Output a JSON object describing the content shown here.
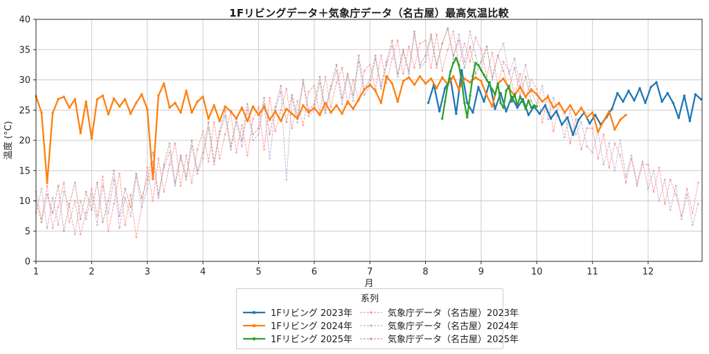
{
  "chart_data": {
    "type": "line",
    "title": "1Fリビングデータ＋気象庁データ（名古屋）最高気温比較",
    "xlabel": "月",
    "ylabel": "温度 (°C)",
    "xlim": [
      1,
      12.97
    ],
    "ylim": [
      0,
      40
    ],
    "xticks": [
      1,
      2,
      3,
      4,
      5,
      6,
      7,
      8,
      9,
      10,
      11,
      12
    ],
    "yticks": [
      0,
      5,
      10,
      15,
      20,
      25,
      30,
      35,
      40
    ],
    "grid": true,
    "grid_color": "#cccccc",
    "spine_color": "#262626",
    "legend_title": "系列",
    "legend_position": "bottom-center",
    "series": [
      {
        "name": "1Fリビング 2023年",
        "color": "#1f77b4",
        "style": "solid",
        "width": 2.3,
        "marker": true,
        "opacity": 1,
        "x_start": 8.05,
        "x_step": 0.1,
        "values": [
          26.2,
          29.2,
          24.8,
          28.6,
          30.2,
          24.4,
          31.6,
          26.2,
          24.6,
          28.8,
          26.4,
          29.6,
          25.2,
          27.8,
          24.8,
          27.2,
          25.4,
          26.8,
          24.2,
          25.6,
          24.4,
          25.8,
          23.6,
          24.8,
          22.6,
          23.8,
          20.9,
          23.4,
          24.6,
          22.8,
          24.2,
          22.6,
          23.8,
          25.2,
          27.8,
          26.4,
          28.2,
          26.6,
          28.6,
          26.2,
          28.8,
          29.6,
          26.4,
          27.8,
          26.2,
          23.7,
          27.4,
          23.2,
          27.6,
          26.8
        ]
      },
      {
        "name": "1Fリビング 2024年",
        "color": "#ff7f0e",
        "style": "solid",
        "width": 2.3,
        "marker": true,
        "opacity": 1,
        "x_start": 1.0,
        "x_step": 0.1,
        "values": [
          27.3,
          24.6,
          13.0,
          24.5,
          26.8,
          27.2,
          25.4,
          26.8,
          21.2,
          26.4,
          20.3,
          26.8,
          27.4,
          24.3,
          26.9,
          25.6,
          26.8,
          24.4,
          26.2,
          27.6,
          25.2,
          13.6,
          27.4,
          29.4,
          25.4,
          26.2,
          24.6,
          28.2,
          24.6,
          26.4,
          27.2,
          23.6,
          25.8,
          23.2,
          25.6,
          24.8,
          23.6,
          25.4,
          23.2,
          25.6,
          24.2,
          25.6,
          23.4,
          24.8,
          23.2,
          25.2,
          24.4,
          23.6,
          25.8,
          24.6,
          25.4,
          24.2,
          26.2,
          24.6,
          25.8,
          24.4,
          26.4,
          25.2,
          26.8,
          28.4,
          29.2,
          28.2,
          26.2,
          30.6,
          29.4,
          26.4,
          29.8,
          30.4,
          29.2,
          30.6,
          29.4,
          30.2,
          28.6,
          30.4,
          29.2,
          30.6,
          28.4,
          30.2,
          29.6,
          30.4,
          29.8,
          27.4,
          25.6,
          29.4,
          30.2,
          28.6,
          27.4,
          28.8,
          27.2,
          28.4,
          27.6,
          26.4,
          27.2,
          25.4,
          26.2,
          24.6,
          25.8,
          24.2,
          25.4,
          23.8,
          24.6,
          21.4,
          23.2,
          24.8,
          21.8,
          23.4,
          24.2
        ]
      },
      {
        "name": "1Fリビング 2025年",
        "color": "#2ca02c",
        "style": "solid",
        "width": 2.3,
        "marker": true,
        "opacity": 1,
        "x_start": 8.3,
        "x_step": 0.05,
        "values": [
          23.6,
          26.4,
          29.2,
          31.4,
          32.8,
          33.6,
          32.4,
          29.8,
          26.2,
          23.8,
          27.4,
          30.6,
          32.8,
          32.4,
          31.6,
          30.8,
          30.0,
          29.2,
          28.4,
          27.6,
          29.4,
          26.2,
          25.4,
          28.2,
          29.0,
          26.4,
          27.6,
          25.8,
          27.2,
          26.4,
          25.2,
          26.6,
          25.4,
          25.8,
          25.6
        ]
      },
      {
        "name": "気象庁データ（名古屋）2023年",
        "color": "#ff9896",
        "style": "dashed",
        "width": 1,
        "marker": true,
        "opacity": 0.9,
        "x_start": 1.0,
        "x_step": 0.1,
        "values": [
          11.5,
          7.0,
          12.5,
          5.5,
          9.0,
          13.0,
          6.5,
          10.0,
          4.5,
          8.0,
          12.0,
          7.5,
          14.0,
          5.0,
          9.5,
          14.5,
          6.0,
          11.0,
          4.0,
          9.0,
          15.5,
          10.0,
          17.0,
          11.5,
          16.0,
          19.5,
          12.5,
          17.5,
          13.0,
          18.5,
          21.5,
          16.5,
          23.0,
          17.0,
          21.0,
          24.5,
          18.0,
          22.5,
          17.5,
          23.5,
          25.5,
          18.5,
          27.0,
          21.5,
          25.0,
          28.5,
          22.0,
          26.5,
          22.5,
          28.0,
          29.0,
          24.5,
          30.5,
          25.5,
          29.5,
          32.0,
          26.0,
          30.0,
          26.5,
          31.5,
          32.5,
          28.5,
          34.0,
          29.5,
          33.5,
          36.5,
          31.0,
          35.5,
          32.0,
          36.0,
          36.5,
          32.0,
          37.5,
          31.5,
          35.0,
          38.0,
          32.5,
          36.0,
          33.0,
          37.0,
          35.0,
          30.5,
          34.5,
          29.0,
          33.0,
          31.5,
          27.5,
          31.0,
          27.0,
          30.0,
          28.5,
          23.0,
          27.5,
          21.5,
          26.0,
          24.5,
          19.5,
          23.5,
          18.5,
          22.0,
          22.0,
          17.0,
          21.0,
          15.5,
          19.5,
          17.5,
          13.0,
          17.0,
          12.5,
          16.0,
          16.0,
          11.5,
          15.5,
          9.5,
          13.5,
          11.0,
          7.5,
          12.0,
          8.0,
          13.0
        ]
      },
      {
        "name": "気象庁データ（名古屋）2024年",
        "color": "#c5b0d5",
        "style": "dashed",
        "width": 1,
        "marker": true,
        "opacity": 0.9,
        "x_start": 1.0,
        "x_step": 0.1,
        "values": [
          8.0,
          12.0,
          5.5,
          10.5,
          6.0,
          11.5,
          9.0,
          4.5,
          10.0,
          7.0,
          11.0,
          6.0,
          12.5,
          8.0,
          13.5,
          5.5,
          10.5,
          7.5,
          14.0,
          9.0,
          12.0,
          16.5,
          10.5,
          15.5,
          18.0,
          12.5,
          17.0,
          13.5,
          19.0,
          14.5,
          17.0,
          22.0,
          16.0,
          21.0,
          24.0,
          18.5,
          23.0,
          19.0,
          25.0,
          20.0,
          21.0,
          26.0,
          17.0,
          25.0,
          28.0,
          13.5,
          27.0,
          23.0,
          29.5,
          24.0,
          25.0,
          29.5,
          24.5,
          28.5,
          31.5,
          26.0,
          30.5,
          26.5,
          33.0,
          27.5,
          29.0,
          33.5,
          28.5,
          32.5,
          35.5,
          30.5,
          34.5,
          31.0,
          37.5,
          32.0,
          33.0,
          37.0,
          32.0,
          36.0,
          38.5,
          33.5,
          37.5,
          33.0,
          38.0,
          34.0,
          31.5,
          35.5,
          30.0,
          34.0,
          36.0,
          31.0,
          33.5,
          29.0,
          32.5,
          28.0,
          26.0,
          29.0,
          23.5,
          27.0,
          24.0,
          20.5,
          25.0,
          21.0,
          23.0,
          19.0,
          18.0,
          21.5,
          16.0,
          19.5,
          15.0,
          20.0,
          14.0,
          17.5,
          13.0,
          16.5,
          12.0,
          15.0,
          10.0,
          13.5,
          8.5,
          12.5,
          7.0,
          11.0,
          6.0,
          9.5
        ]
      },
      {
        "name": "気象庁データ（名古屋）2025年",
        "color": "#c49c94",
        "style": "dashed",
        "width": 1,
        "marker": true,
        "opacity": 0.9,
        "x_start": 1.0,
        "x_step": 0.1,
        "values": [
          10.0,
          6.5,
          11.0,
          8.0,
          12.5,
          5.0,
          9.5,
          13.0,
          7.0,
          11.5,
          8.5,
          13.0,
          6.5,
          10.0,
          15.0,
          7.5,
          12.0,
          9.0,
          14.5,
          10.5,
          13.5,
          18.0,
          11.0,
          16.0,
          19.5,
          13.0,
          17.5,
          14.0,
          20.0,
          15.0,
          18.0,
          23.0,
          16.5,
          21.5,
          25.0,
          19.0,
          23.5,
          20.0,
          26.0,
          21.0,
          22.0,
          27.0,
          21.0,
          25.5,
          29.0,
          23.0,
          27.5,
          24.0,
          30.0,
          25.0,
          26.0,
          30.5,
          25.0,
          29.0,
          32.5,
          27.0,
          31.0,
          27.5,
          34.0,
          28.5,
          30.0,
          34.0,
          29.0,
          33.0,
          36.5,
          31.0,
          35.0,
          31.5,
          38.0,
          32.5,
          34.0,
          37.5,
          32.5,
          36.0,
          38.5,
          34.0,
          36.5,
          32.0,
          35.5,
          31.0,
          33.0,
          35.5,
          30.5,
          34.0,
          31.5,
          28.5,
          32.0,
          27.5,
          30.5,
          26.5,
          25.0
        ]
      }
    ]
  }
}
